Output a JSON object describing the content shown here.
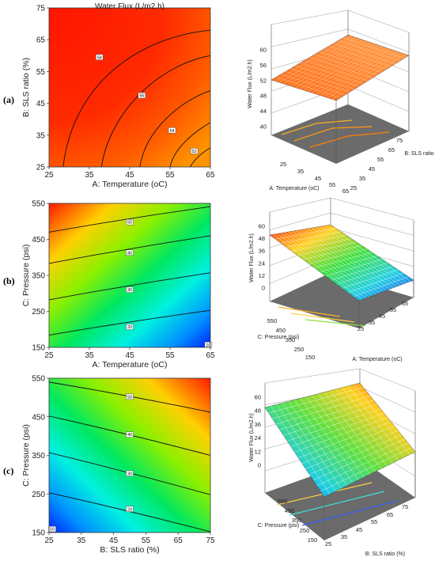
{
  "panel_labels": [
    "(a)",
    "(b)",
    "(c)"
  ],
  "chart_data": [
    {
      "type": "heatmap",
      "subtype": "contour",
      "panel": "(a)",
      "title": "Water Flux (L/m2.h)",
      "xlabel": "A: Temperature (oC)",
      "ylabel": "B: SLS ratio (%)",
      "xlim": [
        25,
        65
      ],
      "ylim": [
        25,
        75
      ],
      "xticks": [
        25,
        35,
        45,
        55,
        65
      ],
      "yticks": [
        25,
        35,
        45,
        55,
        65,
        75
      ],
      "contour_labels": [
        {
          "text": "58",
          "x": 37.5,
          "y": 59.5
        },
        {
          "text": "56",
          "x": 48,
          "y": 47.5
        },
        {
          "text": "54",
          "x": 55.5,
          "y": 36.5
        },
        {
          "text": "52",
          "x": 61,
          "y": 30
        }
      ],
      "colors": {
        "high": "#ff1a00",
        "mid": "#ff5a00",
        "low": "#ff8c00"
      }
    },
    {
      "type": "heatmap",
      "subtype": "surface-3d",
      "panel": "(a)",
      "zlabel": "Water Flux (L/m2.h)",
      "xlabel": "A: Temperature (oC)",
      "ylabel": "B: SLS ratio",
      "xticks": [
        25,
        35,
        45,
        55,
        65
      ],
      "yticks": [
        25,
        35,
        45,
        55,
        65,
        75
      ],
      "zticks": [
        40,
        44,
        48,
        52,
        56,
        60
      ],
      "zlim": [
        40,
        60
      ]
    },
    {
      "type": "heatmap",
      "subtype": "contour",
      "panel": "(b)",
      "xlabel": "A: Temperature (oC)",
      "ylabel": "C: Pressure (psi)",
      "xlim": [
        25,
        65
      ],
      "ylim": [
        150,
        550
      ],
      "xticks": [
        25,
        35,
        45,
        55,
        65
      ],
      "yticks": [
        150,
        250,
        350,
        450,
        550
      ],
      "contour_labels": [
        {
          "text": "50",
          "x": 45,
          "y": 498
        },
        {
          "text": "40",
          "x": 45,
          "y": 413
        },
        {
          "text": "30",
          "x": 45,
          "y": 310
        },
        {
          "text": "20",
          "x": 45,
          "y": 207
        },
        {
          "text": "10",
          "x": 64.5,
          "y": 157
        }
      ]
    },
    {
      "type": "heatmap",
      "subtype": "surface-3d",
      "panel": "(b)",
      "zlabel": "Water Flux (L/m2.h)",
      "xlabel": "A: Temperature (oC)",
      "ylabel": "C: Pressure (psi)",
      "xticks": [
        25,
        35,
        45,
        55,
        65
      ],
      "yticks": [
        150,
        250,
        350,
        450,
        550
      ],
      "zticks": [
        0,
        12,
        24,
        36,
        48,
        60
      ],
      "zlim": [
        0,
        60
      ]
    },
    {
      "type": "heatmap",
      "subtype": "contour",
      "panel": "(c)",
      "xlabel": "B: SLS ratio (%)",
      "ylabel": "C: Pressure (psi)",
      "xlim": [
        25,
        75
      ],
      "ylim": [
        150,
        550
      ],
      "xticks": [
        25,
        35,
        45,
        55,
        65,
        75
      ],
      "yticks": [
        150,
        250,
        350,
        450,
        550
      ],
      "contour_labels": [
        {
          "text": "50",
          "x": 50,
          "y": 502
        },
        {
          "text": "40",
          "x": 50,
          "y": 404
        },
        {
          "text": "30",
          "x": 50,
          "y": 303
        },
        {
          "text": "20",
          "x": 50,
          "y": 211
        },
        {
          "text": "10",
          "x": 26,
          "y": 159
        }
      ]
    },
    {
      "type": "heatmap",
      "subtype": "surface-3d",
      "panel": "(c)",
      "zlabel": "Water Flux (L/m2.h)",
      "xlabel": "B: SLS ratio (%)",
      "ylabel": "C: Pressure (psi)",
      "xticks": [
        25,
        35,
        45,
        55,
        65,
        75
      ],
      "yticks": [
        150,
        250,
        350,
        450,
        550
      ],
      "zticks": [
        0,
        12,
        24,
        36,
        48,
        60
      ],
      "zlim": [
        0,
        60
      ]
    }
  ]
}
